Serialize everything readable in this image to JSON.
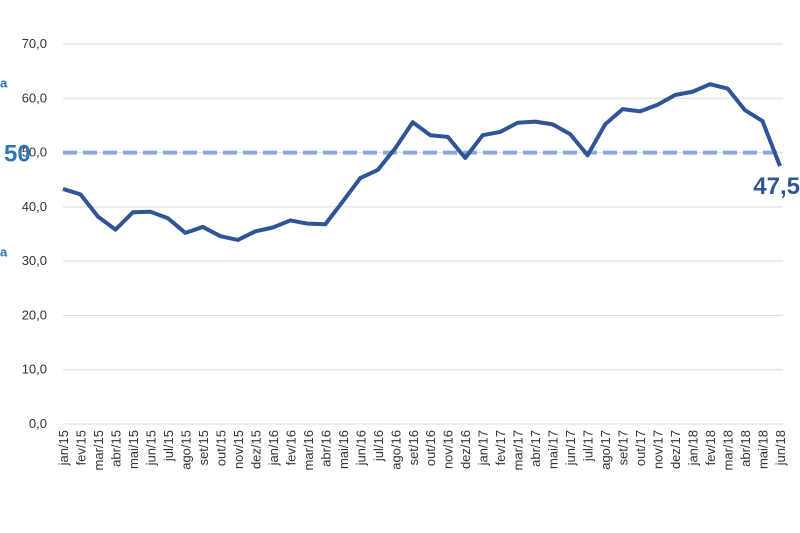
{
  "chart_data": {
    "type": "line",
    "categories": [
      "jan/15",
      "fev/15",
      "mar/15",
      "abr/15",
      "mai/15",
      "jun/15",
      "jul/15",
      "ago/15",
      "set/15",
      "out/15",
      "nov/15",
      "dez/15",
      "jan/16",
      "fev/16",
      "mar/16",
      "abr/16",
      "mai/16",
      "jun/16",
      "jul/16",
      "ago/16",
      "set/16",
      "out/16",
      "nov/16",
      "dez/16",
      "jan/17",
      "fev/17",
      "mar/17",
      "abr/17",
      "mai/17",
      "jun/17",
      "jul/17",
      "ago/17",
      "set/17",
      "out/17",
      "nov/17",
      "dez/17",
      "jan/18",
      "fev/18",
      "mar/18",
      "abr/18",
      "mai/18",
      "jun/18"
    ],
    "series": [
      {
        "color": "#2f5597",
        "values": [
          43.3,
          42.3,
          38.2,
          35.8,
          39.0,
          39.1,
          37.9,
          35.2,
          36.3,
          34.6,
          33.9,
          35.5,
          36.2,
          37.5,
          36.9,
          36.8,
          41.0,
          45.3,
          46.8,
          50.8,
          55.6,
          53.2,
          52.9,
          49.0,
          53.2,
          53.8,
          55.5,
          55.7,
          55.2,
          53.4,
          49.5,
          55.2,
          58.0,
          57.6,
          58.8,
          60.6,
          61.2,
          62.6,
          61.8,
          57.8,
          55.8,
          47.5
        ],
        "value_labels": [
          null,
          null,
          null,
          null,
          null,
          null,
          null,
          null,
          null,
          null,
          null,
          null,
          null,
          null,
          null,
          null,
          null,
          null,
          null,
          null,
          null,
          null,
          null,
          null,
          null,
          null,
          null,
          null,
          null,
          null,
          null,
          null,
          null,
          null,
          null,
          null,
          null,
          null,
          null,
          null,
          null,
          "47,5"
        ]
      }
    ],
    "ylim": [
      0,
      70
    ],
    "yticks": [
      {
        "value": 0,
        "label": "0,0"
      },
      {
        "value": 10,
        "label": "10,0"
      },
      {
        "value": 20,
        "label": "20,0"
      },
      {
        "value": 30,
        "label": "30,0"
      },
      {
        "value": 40,
        "label": "40,0"
      },
      {
        "value": 50,
        "label": "50,0"
      },
      {
        "value": 60,
        "label": "60,0"
      },
      {
        "value": 70,
        "label": "70,0"
      }
    ],
    "grid": true,
    "reference_line": {
      "value": 50,
      "label": "50",
      "color": "#8eaadb"
    },
    "left_fragments": [
      "a",
      "a"
    ]
  }
}
